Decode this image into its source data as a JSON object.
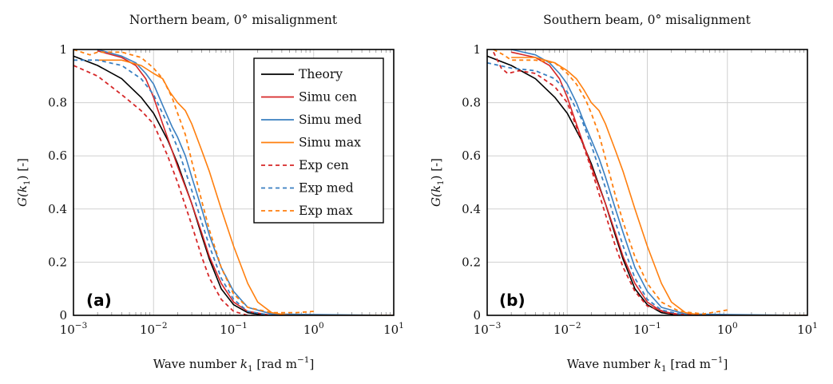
{
  "chart_data": [
    {
      "type": "line",
      "panel_label": "(a)",
      "title": "Northern beam, 0° misalignment",
      "xlabel": "Wave number k1 [rad m^-1]",
      "ylabel": "G(k1) [-]",
      "xscale": "log",
      "xlim": [
        0.001,
        10
      ],
      "ylim": [
        0,
        1
      ],
      "xticks": [
        "10^-3",
        "10^-2",
        "10^-1",
        "10^0",
        "10^1"
      ],
      "yticks": [
        "0",
        "0.2",
        "0.4",
        "0.6",
        "0.8",
        "1"
      ],
      "grid": true,
      "legend_position": "top-right",
      "series": [
        {
          "name": "Theory",
          "style": "solid",
          "color": "#000000",
          "points": [
            [
              0.001,
              0.975
            ],
            [
              0.002,
              0.94
            ],
            [
              0.004,
              0.89
            ],
            [
              0.007,
              0.82
            ],
            [
              0.01,
              0.76
            ],
            [
              0.015,
              0.66
            ],
            [
              0.02,
              0.57
            ],
            [
              0.03,
              0.42
            ],
            [
              0.04,
              0.3
            ],
            [
              0.05,
              0.21
            ],
            [
              0.07,
              0.1
            ],
            [
              0.1,
              0.04
            ],
            [
              0.15,
              0.01
            ],
            [
              0.25,
              0.0
            ],
            [
              10,
              0.0
            ]
          ]
        },
        {
          "name": "Simu cen",
          "style": "solid",
          "color": "#d62728",
          "points": [
            [
              0.002,
              0.995
            ],
            [
              0.004,
              0.97
            ],
            [
              0.006,
              0.94
            ],
            [
              0.008,
              0.89
            ],
            [
              0.01,
              0.82
            ],
            [
              0.013,
              0.72
            ],
            [
              0.017,
              0.62
            ],
            [
              0.02,
              0.56
            ],
            [
              0.03,
              0.42
            ],
            [
              0.04,
              0.31
            ],
            [
              0.05,
              0.22
            ],
            [
              0.07,
              0.12
            ],
            [
              0.1,
              0.05
            ],
            [
              0.15,
              0.015
            ],
            [
              0.3,
              0.0
            ],
            [
              10,
              0.0
            ]
          ]
        },
        {
          "name": "Simu med",
          "style": "solid",
          "color": "#3a7fc1",
          "points": [
            [
              0.002,
              1.0
            ],
            [
              0.004,
              0.975
            ],
            [
              0.006,
              0.95
            ],
            [
              0.008,
              0.91
            ],
            [
              0.01,
              0.87
            ],
            [
              0.013,
              0.79
            ],
            [
              0.017,
              0.71
            ],
            [
              0.02,
              0.67
            ],
            [
              0.025,
              0.6
            ],
            [
              0.03,
              0.52
            ],
            [
              0.04,
              0.4
            ],
            [
              0.05,
              0.3
            ],
            [
              0.07,
              0.18
            ],
            [
              0.1,
              0.09
            ],
            [
              0.15,
              0.03
            ],
            [
              0.3,
              0.005
            ],
            [
              10,
              0.0
            ]
          ]
        },
        {
          "name": "Simu max",
          "style": "solid",
          "color": "#ff7f0e",
          "points": [
            [
              0.002,
              0.96
            ],
            [
              0.004,
              0.96
            ],
            [
              0.007,
              0.94
            ],
            [
              0.01,
              0.91
            ],
            [
              0.013,
              0.89
            ],
            [
              0.016,
              0.84
            ],
            [
              0.02,
              0.8
            ],
            [
              0.025,
              0.77
            ],
            [
              0.03,
              0.72
            ],
            [
              0.04,
              0.62
            ],
            [
              0.05,
              0.54
            ],
            [
              0.07,
              0.4
            ],
            [
              0.1,
              0.26
            ],
            [
              0.15,
              0.12
            ],
            [
              0.2,
              0.05
            ],
            [
              0.3,
              0.01
            ],
            [
              0.5,
              0.0
            ],
            [
              10,
              0.0
            ]
          ]
        },
        {
          "name": "Exp cen",
          "style": "dashed",
          "color": "#d62728",
          "points": [
            [
              0.001,
              0.94
            ],
            [
              0.002,
              0.9
            ],
            [
              0.004,
              0.83
            ],
            [
              0.007,
              0.77
            ],
            [
              0.01,
              0.72
            ],
            [
              0.015,
              0.6
            ],
            [
              0.02,
              0.5
            ],
            [
              0.03,
              0.34
            ],
            [
              0.04,
              0.22
            ],
            [
              0.05,
              0.14
            ],
            [
              0.07,
              0.06
            ],
            [
              0.1,
              0.015
            ],
            [
              0.15,
              0.0
            ],
            [
              0.5,
              0.0
            ]
          ]
        },
        {
          "name": "Exp med",
          "style": "dashed",
          "color": "#3a7fc1",
          "points": [
            [
              0.001,
              0.96
            ],
            [
              0.002,
              0.96
            ],
            [
              0.004,
              0.94
            ],
            [
              0.007,
              0.89
            ],
            [
              0.01,
              0.83
            ],
            [
              0.015,
              0.72
            ],
            [
              0.02,
              0.63
            ],
            [
              0.03,
              0.47
            ],
            [
              0.04,
              0.35
            ],
            [
              0.05,
              0.26
            ],
            [
              0.07,
              0.14
            ],
            [
              0.1,
              0.06
            ],
            [
              0.15,
              0.015
            ],
            [
              0.3,
              0.0
            ],
            [
              0.5,
              0.0
            ]
          ]
        },
        {
          "name": "Exp max",
          "style": "dashed",
          "color": "#ff7f0e",
          "points": [
            [
              0.001,
              1.0
            ],
            [
              0.0016,
              0.98
            ],
            [
              0.002,
              0.99
            ],
            [
              0.004,
              0.99
            ],
            [
              0.007,
              0.97
            ],
            [
              0.01,
              0.93
            ],
            [
              0.013,
              0.89
            ],
            [
              0.017,
              0.82
            ],
            [
              0.02,
              0.76
            ],
            [
              0.025,
              0.68
            ],
            [
              0.03,
              0.58
            ],
            [
              0.04,
              0.43
            ],
            [
              0.05,
              0.32
            ],
            [
              0.07,
              0.18
            ],
            [
              0.1,
              0.08
            ],
            [
              0.15,
              0.03
            ],
            [
              0.3,
              0.01
            ],
            [
              0.6,
              0.01
            ],
            [
              1.0,
              0.015
            ]
          ]
        }
      ]
    },
    {
      "type": "line",
      "panel_label": "(b)",
      "title": "Southern beam, 0° misalignment",
      "xlabel": "Wave number k1 [rad m^-1]",
      "ylabel": "G(k1) [-]",
      "xscale": "log",
      "xlim": [
        0.001,
        10
      ],
      "ylim": [
        0,
        1
      ],
      "xticks": [
        "10^-3",
        "10^-2",
        "10^-1",
        "10^0",
        "10^1"
      ],
      "yticks": [
        "0",
        "0.2",
        "0.4",
        "0.6",
        "0.8",
        "1"
      ],
      "grid": true,
      "series": [
        {
          "name": "Theory",
          "style": "solid",
          "color": "#000000",
          "points": [
            [
              0.001,
              0.975
            ],
            [
              0.002,
              0.94
            ],
            [
              0.004,
              0.89
            ],
            [
              0.007,
              0.82
            ],
            [
              0.01,
              0.76
            ],
            [
              0.015,
              0.66
            ],
            [
              0.02,
              0.57
            ],
            [
              0.03,
              0.42
            ],
            [
              0.04,
              0.3
            ],
            [
              0.05,
              0.21
            ],
            [
              0.07,
              0.1
            ],
            [
              0.1,
              0.04
            ],
            [
              0.15,
              0.01
            ],
            [
              0.25,
              0.0
            ],
            [
              10,
              0.0
            ]
          ]
        },
        {
          "name": "Simu cen",
          "style": "solid",
          "color": "#d62728",
          "points": [
            [
              0.002,
              0.99
            ],
            [
              0.004,
              0.97
            ],
            [
              0.006,
              0.94
            ],
            [
              0.008,
              0.89
            ],
            [
              0.01,
              0.82
            ],
            [
              0.013,
              0.72
            ],
            [
              0.017,
              0.62
            ],
            [
              0.02,
              0.56
            ],
            [
              0.03,
              0.42
            ],
            [
              0.04,
              0.31
            ],
            [
              0.05,
              0.22
            ],
            [
              0.07,
              0.12
            ],
            [
              0.1,
              0.05
            ],
            [
              0.15,
              0.015
            ],
            [
              0.3,
              0.0
            ],
            [
              10,
              0.0
            ]
          ]
        },
        {
          "name": "Simu med",
          "style": "solid",
          "color": "#3a7fc1",
          "points": [
            [
              0.002,
              1.0
            ],
            [
              0.004,
              0.98
            ],
            [
              0.006,
              0.95
            ],
            [
              0.008,
              0.91
            ],
            [
              0.01,
              0.87
            ],
            [
              0.013,
              0.8
            ],
            [
              0.017,
              0.71
            ],
            [
              0.02,
              0.66
            ],
            [
              0.025,
              0.59
            ],
            [
              0.03,
              0.52
            ],
            [
              0.04,
              0.4
            ],
            [
              0.05,
              0.31
            ],
            [
              0.07,
              0.18
            ],
            [
              0.1,
              0.09
            ],
            [
              0.15,
              0.03
            ],
            [
              0.3,
              0.005
            ],
            [
              10,
              0.0
            ]
          ]
        },
        {
          "name": "Simu max",
          "style": "solid",
          "color": "#ff7f0e",
          "points": [
            [
              0.002,
              0.97
            ],
            [
              0.004,
              0.97
            ],
            [
              0.007,
              0.95
            ],
            [
              0.01,
              0.92
            ],
            [
              0.013,
              0.89
            ],
            [
              0.016,
              0.85
            ],
            [
              0.02,
              0.8
            ],
            [
              0.025,
              0.77
            ],
            [
              0.03,
              0.72
            ],
            [
              0.04,
              0.62
            ],
            [
              0.05,
              0.54
            ],
            [
              0.07,
              0.4
            ],
            [
              0.1,
              0.26
            ],
            [
              0.15,
              0.12
            ],
            [
              0.2,
              0.05
            ],
            [
              0.3,
              0.01
            ],
            [
              0.5,
              0.0
            ],
            [
              10,
              0.0
            ]
          ]
        },
        {
          "name": "Exp cen",
          "style": "dashed",
          "color": "#d62728",
          "points": [
            [
              0.0012,
              0.99
            ],
            [
              0.0015,
              0.93
            ],
            [
              0.0018,
              0.91
            ],
            [
              0.0025,
              0.92
            ],
            [
              0.004,
              0.91
            ],
            [
              0.007,
              0.86
            ],
            [
              0.01,
              0.8
            ],
            [
              0.015,
              0.66
            ],
            [
              0.02,
              0.55
            ],
            [
              0.03,
              0.38
            ],
            [
              0.04,
              0.26
            ],
            [
              0.05,
              0.18
            ],
            [
              0.07,
              0.09
            ],
            [
              0.1,
              0.035
            ],
            [
              0.2,
              0.005
            ],
            [
              0.5,
              0.0
            ],
            [
              1.0,
              0.0
            ]
          ]
        },
        {
          "name": "Exp med",
          "style": "dashed",
          "color": "#3a7fc1",
          "points": [
            [
              0.001,
              0.95
            ],
            [
              0.002,
              0.93
            ],
            [
              0.004,
              0.92
            ],
            [
              0.007,
              0.89
            ],
            [
              0.01,
              0.84
            ],
            [
              0.015,
              0.74
            ],
            [
              0.02,
              0.64
            ],
            [
              0.03,
              0.48
            ],
            [
              0.04,
              0.35
            ],
            [
              0.05,
              0.26
            ],
            [
              0.07,
              0.14
            ],
            [
              0.1,
              0.06
            ],
            [
              0.15,
              0.02
            ],
            [
              0.3,
              0.0
            ],
            [
              1.0,
              0.0
            ]
          ]
        },
        {
          "name": "Exp max",
          "style": "dashed",
          "color": "#ff7f0e",
          "points": [
            [
              0.0012,
              1.0
            ],
            [
              0.0016,
              0.98
            ],
            [
              0.002,
              0.96
            ],
            [
              0.004,
              0.96
            ],
            [
              0.007,
              0.95
            ],
            [
              0.01,
              0.91
            ],
            [
              0.013,
              0.87
            ],
            [
              0.017,
              0.81
            ],
            [
              0.02,
              0.76
            ],
            [
              0.025,
              0.68
            ],
            [
              0.03,
              0.59
            ],
            [
              0.04,
              0.45
            ],
            [
              0.05,
              0.35
            ],
            [
              0.07,
              0.22
            ],
            [
              0.1,
              0.12
            ],
            [
              0.15,
              0.05
            ],
            [
              0.25,
              0.015
            ],
            [
              0.5,
              0.005
            ],
            [
              0.8,
              0.015
            ],
            [
              1.0,
              0.02
            ]
          ]
        }
      ]
    }
  ],
  "legend": {
    "entries": [
      {
        "label": "Theory",
        "color": "#000000",
        "style": "solid"
      },
      {
        "label": "Simu cen",
        "color": "#d62728",
        "style": "solid"
      },
      {
        "label": "Simu med",
        "color": "#3a7fc1",
        "style": "solid"
      },
      {
        "label": "Simu max",
        "color": "#ff7f0e",
        "style": "solid"
      },
      {
        "label": "Exp cen",
        "color": "#d62728",
        "style": "dashed"
      },
      {
        "label": "Exp med",
        "color": "#3a7fc1",
        "style": "dashed"
      },
      {
        "label": "Exp max",
        "color": "#ff7f0e",
        "style": "dashed"
      }
    ]
  },
  "text": {
    "xlabel_main": "Wave number ",
    "xlabel_k": "k",
    "xlabel_sub": "1",
    "xlabel_unit": " [rad m",
    "xlabel_exp": "−1",
    "xlabel_close": "]",
    "ylabel_G": "G(",
    "ylabel_k": "k",
    "ylabel_sub": "1",
    "ylabel_rest": ") [-]"
  }
}
